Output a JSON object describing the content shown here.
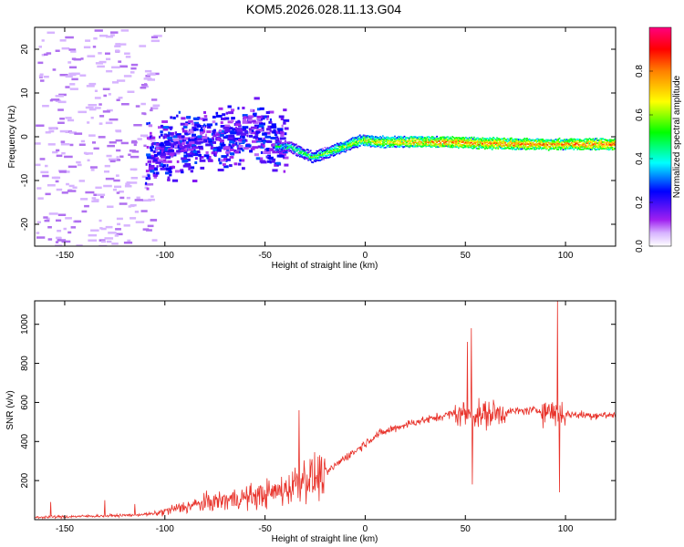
{
  "title": "KOM5.2026.028.11.13.G04",
  "chart_data": [
    {
      "type": "heatmap",
      "title": "KOM5.2026.028.11.13.G04",
      "xlabel": "Height of straight line (km)",
      "ylabel": "Frequency (Hz)",
      "xlim": [
        -165,
        125
      ],
      "ylim": [
        -25,
        25
      ],
      "xticks": [
        -150,
        -100,
        -50,
        0,
        50,
        100
      ],
      "yticks": [
        -20,
        -10,
        0,
        10,
        20
      ],
      "tick_labels_x": [
        "-150",
        "-100",
        "-50",
        "0",
        "50",
        "100"
      ],
      "tick_labels_y": [
        "-20",
        "-10",
        "0",
        "10",
        "20"
      ],
      "frequency_ridge": [
        {
          "x": -105,
          "y": -4
        },
        {
          "x": -95,
          "y": -2
        },
        {
          "x": -80,
          "y": -1
        },
        {
          "x": -65,
          "y": 0
        },
        {
          "x": -55,
          "y": 2
        },
        {
          "x": -50,
          "y": 0
        },
        {
          "x": -45,
          "y": -2
        },
        {
          "x": -38,
          "y": -2
        },
        {
          "x": -32,
          "y": -3.5
        },
        {
          "x": -26,
          "y": -4.5
        },
        {
          "x": -20,
          "y": -3.5
        },
        {
          "x": -10,
          "y": -2
        },
        {
          "x": -2,
          "y": -0.5
        },
        {
          "x": 5,
          "y": -1
        },
        {
          "x": 20,
          "y": -1
        },
        {
          "x": 40,
          "y": -1
        },
        {
          "x": 60,
          "y": -1.3
        },
        {
          "x": 80,
          "y": -1.5
        },
        {
          "x": 100,
          "y": -1.5
        },
        {
          "x": 125,
          "y": -1.5
        }
      ],
      "colorbar": {
        "label": "Normalized spectral amplitude",
        "range": [
          0,
          1
        ],
        "ticks": [
          "0.0",
          "0.2",
          "0.4",
          "0.6",
          "0.8"
        ],
        "colors": [
          "#ffffff",
          "#a020f0",
          "#0000ff",
          "#00ffff",
          "#00ff00",
          "#ffff00",
          "#ff8000",
          "#ff0000",
          "#ff0080"
        ]
      }
    },
    {
      "type": "line",
      "xlabel": "Height of straight line (km)",
      "ylabel": "SNR (v/v)",
      "xlim": [
        -165,
        125
      ],
      "ylim": [
        0,
        1120
      ],
      "xticks": [
        -150,
        -100,
        -50,
        0,
        50,
        100
      ],
      "yticks": [
        200,
        400,
        600,
        800,
        1000
      ],
      "tick_labels_x": [
        "-150",
        "-100",
        "-50",
        "0",
        "50",
        "100"
      ],
      "tick_labels_y": [
        "200",
        "400",
        "600",
        "800",
        "1000"
      ],
      "series": [
        {
          "name": "SNR",
          "color": "#e8322a",
          "x": [
            -165,
            -150,
            -120,
            -105,
            -95,
            -80,
            -70,
            -55,
            -45,
            -38,
            -34,
            -30,
            -25,
            -18,
            -10,
            -5,
            0,
            5,
            15,
            25,
            35,
            42,
            46,
            52,
            58,
            65,
            75,
            85,
            92,
            96,
            100,
            110,
            125
          ],
          "y": [
            12,
            15,
            22,
            30,
            55,
            85,
            100,
            120,
            140,
            160,
            200,
            220,
            210,
            250,
            320,
            350,
            390,
            430,
            470,
            500,
            520,
            540,
            545,
            540,
            535,
            545,
            555,
            560,
            555,
            550,
            540,
            535,
            535
          ]
        }
      ],
      "spikes": [
        {
          "x": -157,
          "y": 90
        },
        {
          "x": -130,
          "y": 100
        },
        {
          "x": -115,
          "y": 80
        },
        {
          "x": -33,
          "y": 560
        },
        {
          "x": 51,
          "y": 910
        },
        {
          "x": 53,
          "y": 980
        },
        {
          "x": 53.5,
          "y": 180
        },
        {
          "x": 96,
          "y": 1120
        },
        {
          "x": 97,
          "y": 140
        }
      ]
    }
  ]
}
